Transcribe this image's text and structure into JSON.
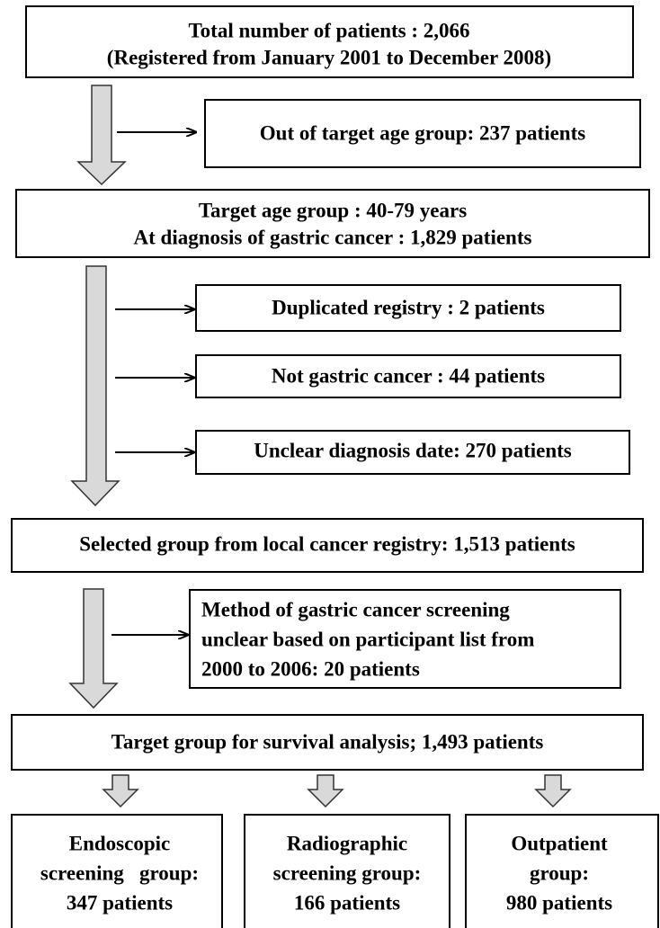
{
  "nodes": [
    {
      "lines": [
        "Total number of patients : 2,066",
        "(Registered from January 2001 to December 2008)"
      ]
    },
    {
      "lines": [
        "Out of target age group: 237 patients"
      ]
    },
    {
      "lines": [
        "Target age group : 40-79 years",
        "At diagnosis of gastric cancer : 1,829 patients"
      ]
    },
    {
      "lines": [
        "Duplicated registry : 2 patients"
      ]
    },
    {
      "lines": [
        "Not gastric cancer : 44 patients"
      ]
    },
    {
      "lines": [
        "Unclear diagnosis date: 270 patients"
      ]
    },
    {
      "lines": [
        "Selected group from local cancer registry: 1,513 patients"
      ]
    },
    {
      "lines": [
        "Method of gastric cancer screening",
        "unclear based on participant list from",
        "2000 to 2006: 20 patients"
      ]
    },
    {
      "lines": [
        "Target group for survival analysis; 1,493 patients"
      ]
    },
    {
      "lines": [
        "Endoscopic",
        "screening   group:",
        "347 patients"
      ]
    },
    {
      "lines": [
        "Radiographic",
        "screening group:",
        "166 patients"
      ]
    },
    {
      "lines": [
        "Outpatient",
        "group:",
        "980 patients"
      ]
    }
  ]
}
